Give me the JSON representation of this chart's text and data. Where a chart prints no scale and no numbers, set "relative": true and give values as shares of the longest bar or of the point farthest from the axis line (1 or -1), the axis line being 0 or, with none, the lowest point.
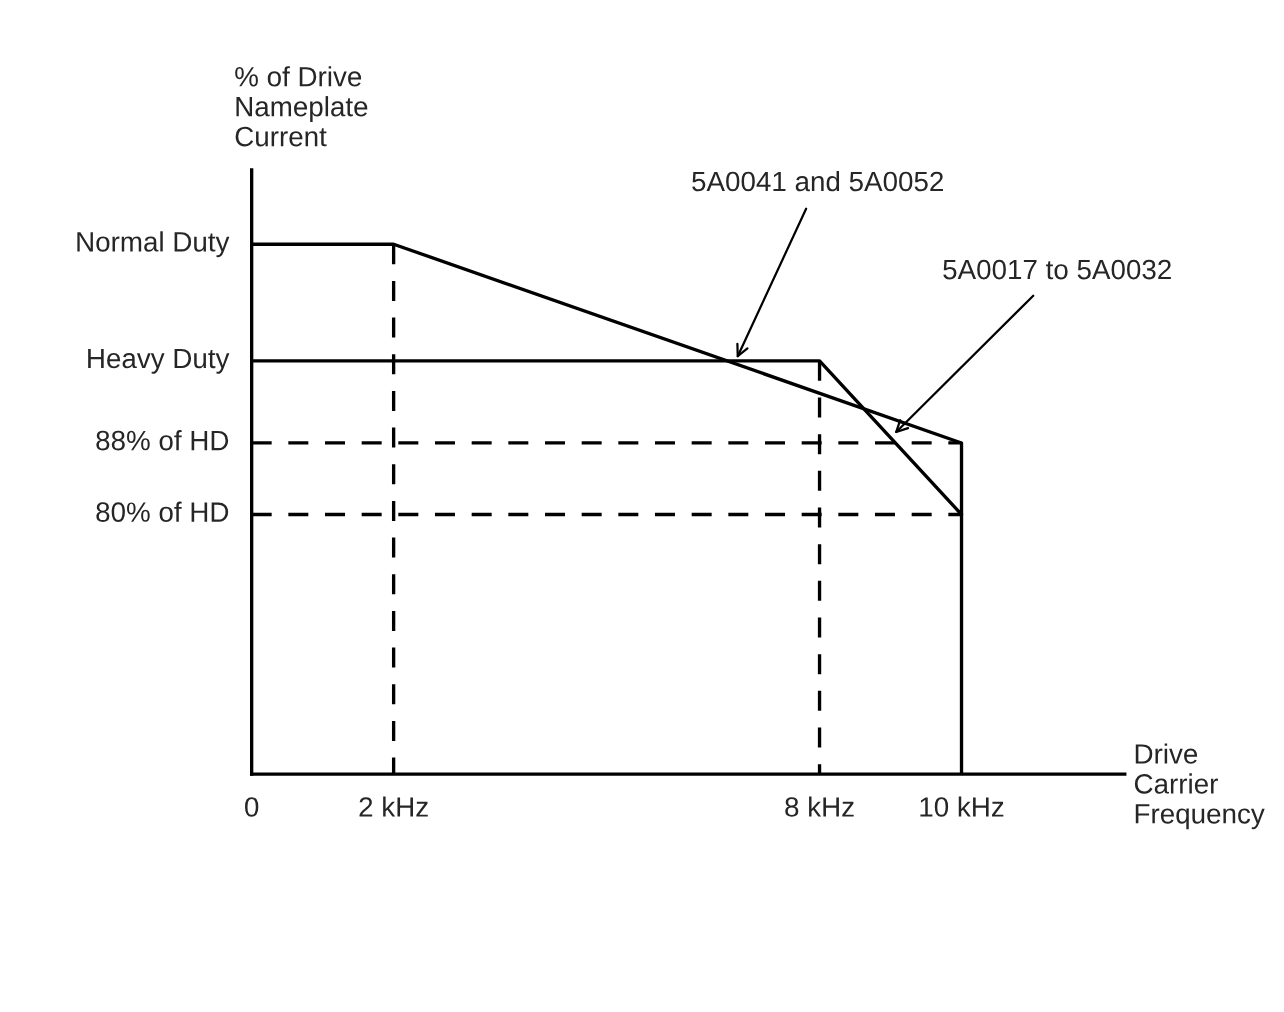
{
  "chart_data": {
    "type": "line",
    "xlabel": "Drive\nCarrier\nFrequency",
    "ylabel": "% of Drive\nNameplate\nCurrent",
    "relative": true,
    "series": [
      {
        "name": "5A0041 and 5A0052",
        "color": "#000000",
        "x": [
          0,
          2,
          10,
          10
        ],
        "values": [
          1,
          1,
          0.625,
          0
        ]
      },
      {
        "name": "5A0017 to 5A0032",
        "color": "#000000",
        "x": [
          0,
          8,
          10
        ],
        "values": [
          0.78,
          0.78,
          0.49
        ]
      },
      {
        "color": "#000000",
        "line_style": "dashed",
        "x": [
          2,
          2
        ],
        "values": [
          1,
          0
        ]
      },
      {
        "color": "#000000",
        "line_style": "dashed",
        "x": [
          8,
          8
        ],
        "values": [
          0.78,
          0
        ]
      },
      {
        "color": "#000000",
        "line_style": "dashed",
        "x": [
          0,
          10
        ],
        "values": [
          0.625,
          0.625
        ]
      },
      {
        "color": "#000000",
        "line_style": "dashed",
        "x": [
          0,
          10
        ],
        "values": [
          0.49,
          0.49
        ]
      }
    ],
    "xlim": [
      0,
      12.3
    ],
    "xticks": [
      0,
      {
        "value": 2,
        "label": "2 kHz"
      },
      {
        "value": 8,
        "label": "8 kHz"
      },
      {
        "value": 10,
        "label": "10 kHz"
      }
    ],
    "annotations": [
      "Normal Duty",
      "Heavy Duty",
      "88% of HD",
      "80% of HD"
    ],
    "legend": false
  }
}
